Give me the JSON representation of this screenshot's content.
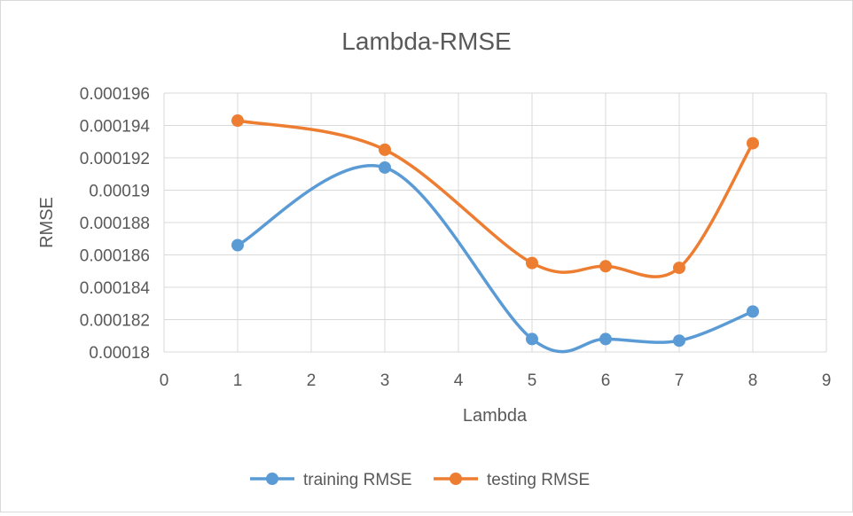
{
  "chart_data": {
    "type": "scatter",
    "title": "Lambda-RMSE",
    "xlabel": "Lambda",
    "ylabel": "RMSE",
    "xlim": [
      0,
      9
    ],
    "ylim": [
      0.00018,
      0.000196
    ],
    "x_ticks": [
      "0",
      "1",
      "2",
      "3",
      "4",
      "5",
      "6",
      "7",
      "8",
      "9"
    ],
    "y_ticks": [
      "0.00018",
      "0.000182",
      "0.000184",
      "0.000186",
      "0.000188",
      "0.00019",
      "0.000192",
      "0.000194",
      "0.000196"
    ],
    "grid": true,
    "smooth_lines": true,
    "legend_position": "bottom",
    "series": [
      {
        "name": "training RMSE",
        "color": "#5b9bd5",
        "x": [
          1,
          3,
          5,
          6,
          7,
          8
        ],
        "y": [
          0.0001866,
          0.0001914,
          0.0001808,
          0.0001808,
          0.0001807,
          0.0001825
        ]
      },
      {
        "name": "testing RMSE",
        "color": "#ed7d31",
        "x": [
          1,
          3,
          5,
          6,
          7,
          8
        ],
        "y": [
          0.0001943,
          0.0001925,
          0.0001855,
          0.0001853,
          0.0001852,
          0.0001929
        ]
      }
    ]
  }
}
